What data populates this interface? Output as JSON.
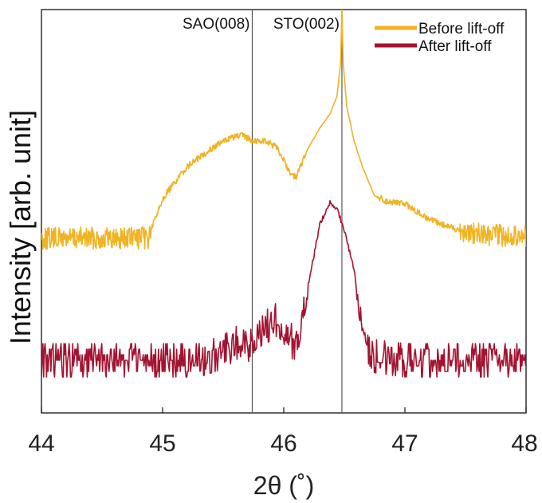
{
  "chart_data": {
    "type": "line",
    "xlabel": "2θ (˚)",
    "ylabel": "Intensity [arb. unit]",
    "xlim": [
      44,
      48
    ],
    "x_ticks": [
      "44",
      "45",
      "46",
      "47",
      "48"
    ],
    "y_ticks": "none",
    "grid": false,
    "legend_position": "top-right",
    "annotations": [
      {
        "label": "SAO(008)",
        "x": 45.74
      },
      {
        "label": "STO(002)",
        "x": 46.48
      }
    ],
    "series": [
      {
        "name": "Before lift-off",
        "color": "#F0B323",
        "x": [
          44.0,
          44.5,
          44.88,
          45.0,
          45.2,
          45.4,
          45.55,
          45.65,
          45.75,
          45.85,
          45.95,
          46.05,
          46.1,
          46.2,
          46.3,
          46.38,
          46.44,
          46.47,
          46.48,
          46.49,
          46.52,
          46.58,
          46.65,
          46.75,
          46.85,
          47.0,
          47.2,
          47.45,
          47.7,
          48.0
        ],
        "y": [
          0.18,
          0.18,
          0.18,
          0.33,
          0.45,
          0.52,
          0.56,
          0.57,
          0.55,
          0.55,
          0.52,
          0.43,
          0.41,
          0.52,
          0.6,
          0.65,
          0.72,
          0.85,
          1.05,
          0.85,
          0.68,
          0.55,
          0.45,
          0.34,
          0.32,
          0.31,
          0.25,
          0.21,
          0.19,
          0.19
        ]
      },
      {
        "name": "After lift-off",
        "color": "#A31330",
        "x": [
          44.0,
          44.5,
          45.0,
          45.3,
          45.5,
          45.65,
          45.75,
          45.85,
          45.95,
          46.05,
          46.1,
          46.2,
          46.3,
          46.38,
          46.45,
          46.52,
          46.58,
          46.62,
          46.68,
          46.75,
          47.0,
          47.5,
          48.0
        ],
        "y": [
          0.0,
          0.0,
          0.0,
          0.0,
          0.02,
          0.05,
          0.03,
          0.08,
          0.1,
          0.06,
          0.02,
          0.18,
          0.33,
          0.38,
          0.36,
          0.29,
          0.22,
          0.12,
          0.04,
          0.01,
          0.0,
          0.0,
          0.0
        ]
      }
    ]
  }
}
